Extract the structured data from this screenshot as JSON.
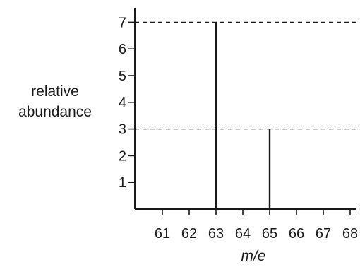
{
  "chart_data": {
    "type": "bar",
    "x_ticks": [
      "61",
      "62",
      "63",
      "64",
      "65",
      "66",
      "67",
      "68"
    ],
    "y_ticks": [
      "1",
      "2",
      "3",
      "4",
      "5",
      "6",
      "7"
    ],
    "xlabel": "m/e",
    "ylabel_lines": [
      "relative",
      "abundance"
    ],
    "xlim": [
      60,
      68.5
    ],
    "ylim": [
      0,
      7.5
    ],
    "series": [
      {
        "points": [
          {
            "x": 63,
            "y": 7
          },
          {
            "x": 65,
            "y": 3
          }
        ]
      }
    ],
    "reference_lines_y": [
      7,
      3
    ],
    "colors": {
      "ink": "#1a1a1a"
    }
  }
}
